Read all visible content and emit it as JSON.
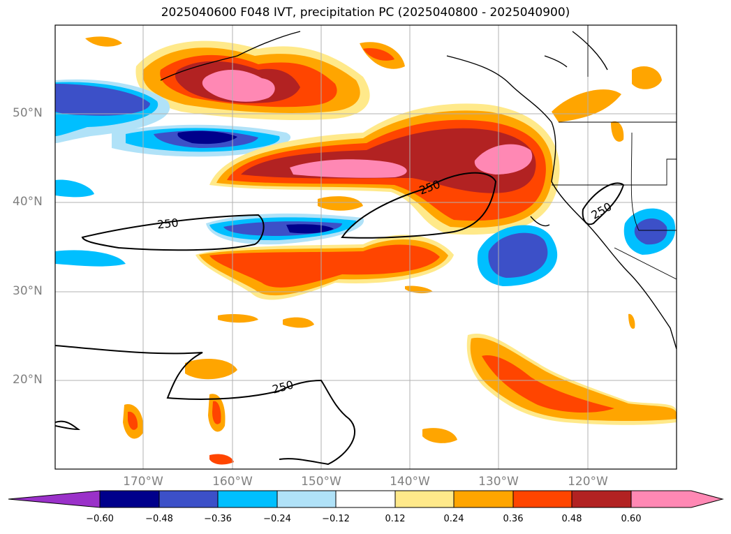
{
  "title": "2025040600 F048 IVT, precipitation PC (2025040800 - 2025040900)",
  "lat_labels": [
    "50°N",
    "40°N",
    "30°N",
    "20°N"
  ],
  "lon_labels": [
    "170°W",
    "160°W",
    "150°W",
    "140°W",
    "130°W",
    "120°W"
  ],
  "contour_labels": [
    "250",
    "250",
    "250",
    "250"
  ],
  "colorbar": {
    "ticks": [
      "−0.60",
      "−0.48",
      "−0.36",
      "−0.24",
      "−0.12",
      "0.12",
      "0.24",
      "0.36",
      "0.48",
      "0.60"
    ],
    "colors": [
      "#9a31c9",
      "#00008b",
      "#3c50c8",
      "#00bfff",
      "#b0e2f8",
      "#ffffff",
      "#ffe98a",
      "#ffa500",
      "#ff4500",
      "#b22222",
      "#ff88b4"
    ]
  },
  "legend_colors": {
    "neg_strong": "#00008b",
    "neg_mid": "#3c50c8",
    "neg": "#00bfff",
    "neg_light": "#b0e2f8",
    "pos_light": "#ffe98a",
    "pos": "#ffa500",
    "pos_mid": "#ff4500",
    "pos_strong": "#b22222",
    "pos_max": "#ff88b4"
  }
}
